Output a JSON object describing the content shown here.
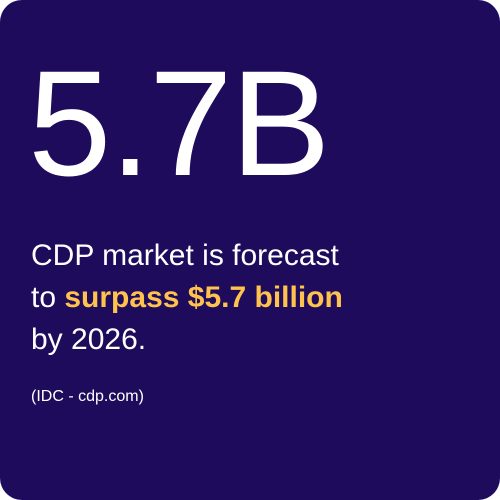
{
  "stat": "5.7B",
  "statement": {
    "line1": "CDP market is forecast",
    "line2_start": "to",
    "highlight": "surpass $5.7 billion",
    "line3": "by 2026."
  },
  "source": "(IDC - cdp.com)"
}
